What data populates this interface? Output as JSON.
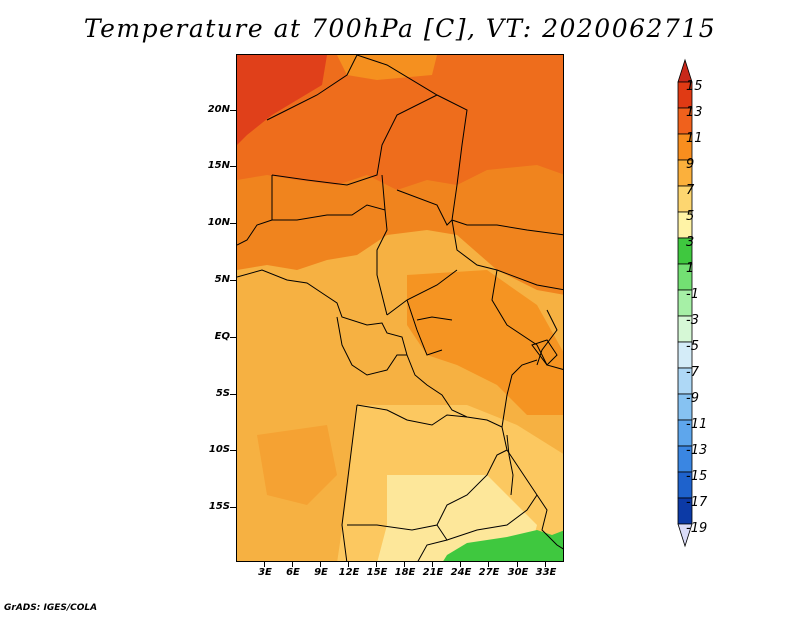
{
  "title": "Temperature at 700hPa [C], VT: 2020062715",
  "footer": "GrADS: IGES/COLA",
  "lat_labels": [
    "20N",
    "15N",
    "10N",
    "5N",
    "EQ",
    "5S",
    "10S",
    "15S"
  ],
  "lon_labels": [
    "3E",
    "6E",
    "9E",
    "12E",
    "15E",
    "18E",
    "21E",
    "24E",
    "27E",
    "30E",
    "33E"
  ],
  "colorbar": {
    "labels": [
      "15",
      "13",
      "11",
      "9",
      "7",
      "5",
      "3",
      "1",
      "-1",
      "-3",
      "-5",
      "-7",
      "-9",
      "-11",
      "-13",
      "-15",
      "-17",
      "-19"
    ],
    "colors": [
      "#e03a14",
      "#f0611c",
      "#f88e1e",
      "#fbb03c",
      "#fdd670",
      "#fff3a6",
      "#3fc83f",
      "#73e073",
      "#a6f0a6",
      "#d6f8d6",
      "#d4ecf8",
      "#aed8f6",
      "#86c2f2",
      "#5ea6ec",
      "#3a86e2",
      "#1e62cc",
      "#0c3aa6",
      "#08105e"
    ],
    "top_triangle_color": "#c8281a",
    "bottom_triangle_color": "#dadcf8"
  }
}
